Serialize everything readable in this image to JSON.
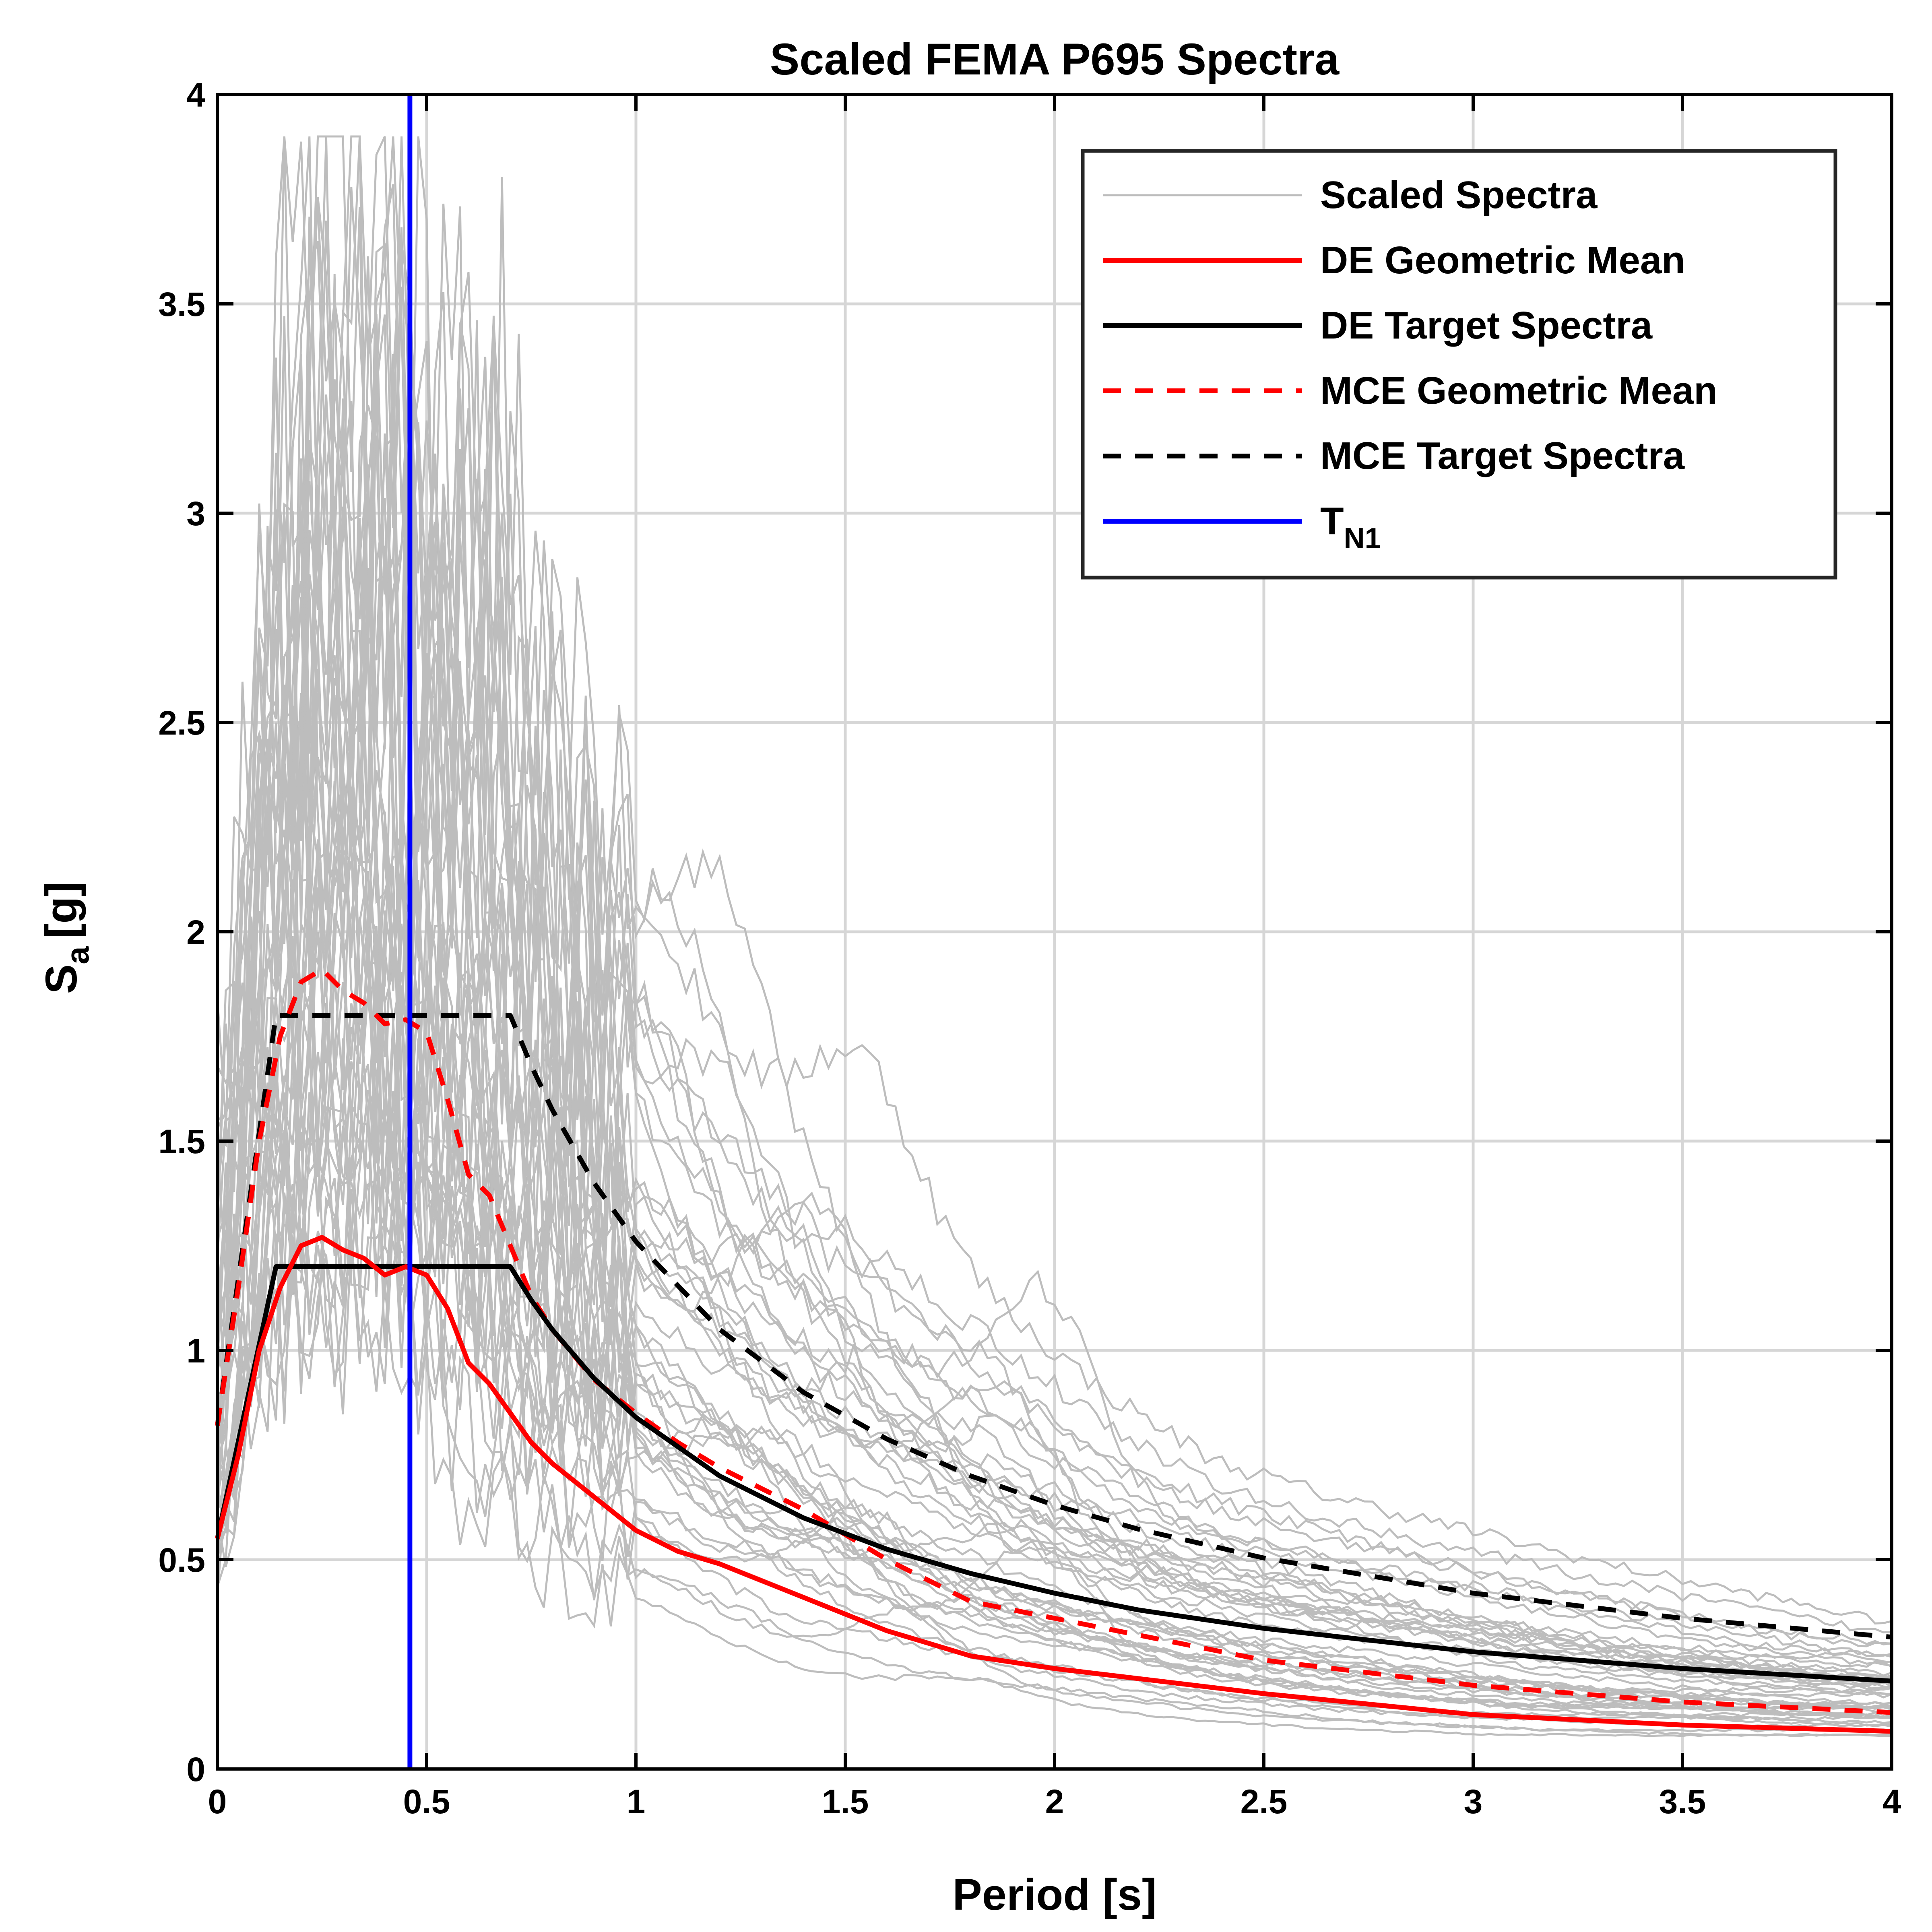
{
  "chart_data": {
    "type": "line",
    "title": "Scaled FEMA P695 Spectra",
    "xlabel": "Period [s]",
    "ylabel": "S_a [g]",
    "ylabel_main": "S",
    "ylabel_sub": "a",
    "ylabel_unit": "[g]",
    "xlim": [
      0,
      4
    ],
    "ylim": [
      0,
      4
    ],
    "xticks": [
      "0",
      "0.5",
      "1",
      "1.5",
      "2",
      "2.5",
      "3",
      "3.5",
      "4"
    ],
    "yticks": [
      "0",
      "0.5",
      "1",
      "1.5",
      "2",
      "2.5",
      "3",
      "3.5",
      "4"
    ],
    "grid": true,
    "legend_position": "top-right",
    "colors": {
      "scaled": "#bdbdbd",
      "de_mean": "#ff0000",
      "de_target": "#000000",
      "mce_mean": "#ff0000",
      "mce_target": "#000000",
      "tn1": "#0000ff"
    },
    "legend": [
      {
        "label": "Scaled Spectra",
        "key": "scaled"
      },
      {
        "label": "DE Geometric Mean",
        "key": "de_mean"
      },
      {
        "label": "DE Target Spectra",
        "key": "de_target"
      },
      {
        "label": "MCE Geometric Mean",
        "key": "mce_mean"
      },
      {
        "label": "MCE Target Spectra",
        "key": "mce_target"
      },
      {
        "label": "T",
        "sub": "N1",
        "key": "tn1"
      }
    ],
    "tn1": 0.46,
    "series": [
      {
        "key": "de_target",
        "style": "solid",
        "x": [
          0,
          0.14,
          0.7,
          0.75,
          0.8,
          0.9,
          1.0,
          1.2,
          1.4,
          1.6,
          1.8,
          2.0,
          2.2,
          2.5,
          3.0,
          3.5,
          4.0
        ],
        "y": [
          0.55,
          1.2,
          1.2,
          1.12,
          1.05,
          0.933,
          0.84,
          0.7,
          0.6,
          0.525,
          0.467,
          0.42,
          0.38,
          0.336,
          0.28,
          0.24,
          0.21
        ]
      },
      {
        "key": "mce_target",
        "style": "dashed",
        "x": [
          0,
          0.14,
          0.7,
          0.75,
          0.8,
          0.9,
          1.0,
          1.2,
          1.4,
          1.6,
          1.8,
          2.0,
          2.2,
          2.5,
          3.0,
          3.5,
          4.0
        ],
        "y": [
          0.82,
          1.8,
          1.8,
          1.68,
          1.575,
          1.4,
          1.26,
          1.05,
          0.9,
          0.788,
          0.7,
          0.63,
          0.573,
          0.504,
          0.42,
          0.36,
          0.315
        ]
      },
      {
        "key": "de_mean",
        "style": "solid",
        "x": [
          0,
          0.05,
          0.1,
          0.15,
          0.2,
          0.25,
          0.3,
          0.35,
          0.4,
          0.45,
          0.5,
          0.55,
          0.6,
          0.65,
          0.7,
          0.75,
          0.8,
          0.9,
          1.0,
          1.1,
          1.2,
          1.3,
          1.4,
          1.5,
          1.6,
          1.8,
          2.0,
          2.5,
          3.0,
          3.5,
          4.0
        ],
        "y": [
          0.55,
          0.75,
          1.0,
          1.15,
          1.25,
          1.27,
          1.24,
          1.22,
          1.18,
          1.2,
          1.18,
          1.1,
          0.97,
          0.92,
          0.85,
          0.78,
          0.73,
          0.65,
          0.57,
          0.52,
          0.49,
          0.45,
          0.41,
          0.37,
          0.33,
          0.27,
          0.24,
          0.18,
          0.13,
          0.105,
          0.09
        ]
      },
      {
        "key": "mce_mean",
        "style": "dashed",
        "x": [
          0,
          0.05,
          0.1,
          0.15,
          0.2,
          0.25,
          0.3,
          0.35,
          0.4,
          0.45,
          0.5,
          0.55,
          0.6,
          0.65,
          0.7,
          0.75,
          0.8,
          0.9,
          1.0,
          1.1,
          1.2,
          1.3,
          1.4,
          1.5,
          1.6,
          1.8,
          2.0,
          2.5,
          3.0,
          3.5,
          4.0
        ],
        "y": [
          0.82,
          1.15,
          1.5,
          1.75,
          1.88,
          1.91,
          1.86,
          1.83,
          1.78,
          1.79,
          1.76,
          1.6,
          1.42,
          1.37,
          1.25,
          1.13,
          1.05,
          0.93,
          0.85,
          0.78,
          0.72,
          0.67,
          0.62,
          0.56,
          0.5,
          0.4,
          0.36,
          0.26,
          0.2,
          0.16,
          0.135
        ]
      }
    ],
    "scaled_spectra_count": 44
  }
}
